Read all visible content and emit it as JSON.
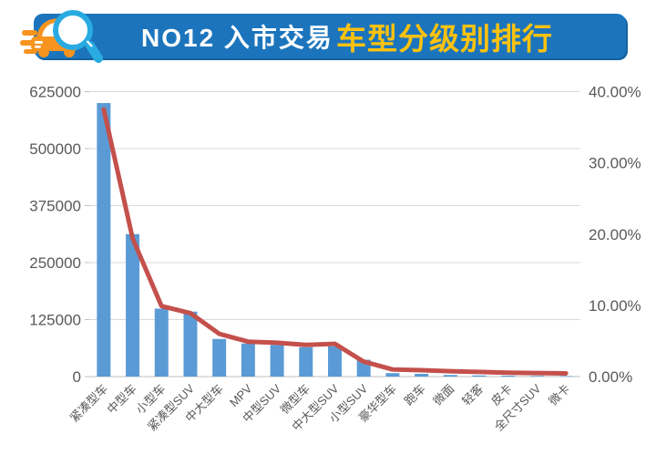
{
  "header": {
    "title_prefix": "NO12 入市交易",
    "title_highlight": "车型分级别排行"
  },
  "colors": {
    "header_bg": "#1C75BC",
    "header_shadow": "#14639F",
    "title_white": "#FFFFFF",
    "title_yellow": "#FFC20E",
    "bar": "#5B9BD5",
    "line": "#C4504B",
    "grid": "#D9D9D9",
    "axis_line": "#BFBFBF",
    "axis_text": "#595959",
    "car_orange": "#F7941E",
    "magnifier_blue": "#29ABE2"
  },
  "chart_data": {
    "type": "combo-bar-line",
    "title": "NO12 入市交易车型分级别排行",
    "categories": [
      "紧凑型车",
      "中型车",
      "小型车",
      "紧凑型SUV",
      "中大型车",
      "MPV",
      "中型SUV",
      "微型车",
      "中大型SUV",
      "小型SUV",
      "豪华型车",
      "跑车",
      "微面",
      "轻客",
      "皮卡",
      "全尺寸SUV",
      "微卡"
    ],
    "series": [
      {
        "name": "volume-bars",
        "type": "bar",
        "y_axis": "left",
        "values": [
          600000,
          312500,
          149000,
          142500,
          82500,
          72500,
          69500,
          64500,
          66500,
          37000,
          7500,
          6000,
          3500,
          2500,
          2000,
          1500,
          1200
        ]
      },
      {
        "name": "share-line",
        "type": "line",
        "y_axis": "right",
        "values_percent": [
          37.5,
          19.4,
          9.9,
          8.9,
          6.0,
          4.9,
          4.75,
          4.45,
          4.6,
          2.1,
          1.0,
          0.9,
          0.75,
          0.65,
          0.55,
          0.5,
          0.45
        ]
      }
    ],
    "left_axis": {
      "tick_labels": [
        "0",
        "125000",
        "250000",
        "375000",
        "500000",
        "625000"
      ],
      "tick_values": [
        0,
        125000,
        250000,
        375000,
        500000,
        625000
      ],
      "range": [
        0,
        625000
      ]
    },
    "right_axis": {
      "tick_labels": [
        "0.00%",
        "10.00%",
        "20.00%",
        "30.00%",
        "40.00%"
      ],
      "tick_values": [
        0,
        10,
        20,
        30,
        40
      ],
      "range": [
        0,
        40
      ]
    },
    "grid": "horizontal",
    "legend": "none"
  }
}
